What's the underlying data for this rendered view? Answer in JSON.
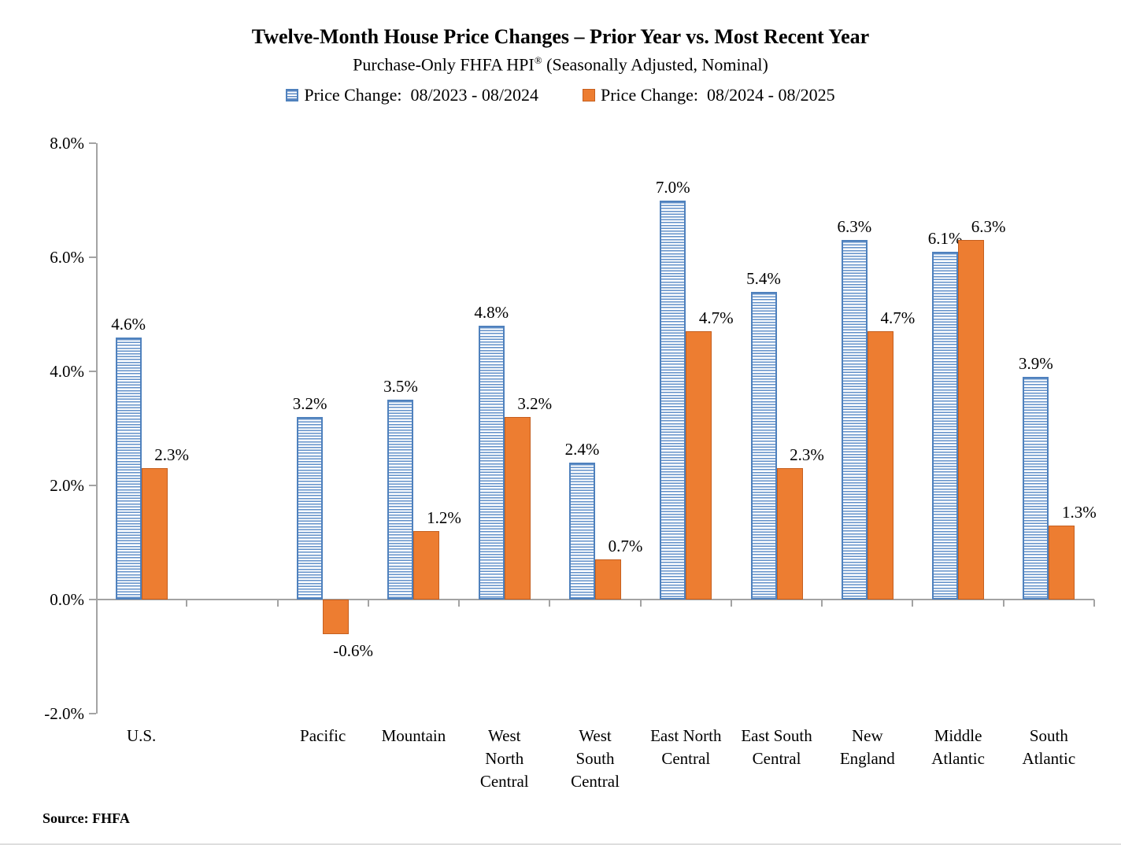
{
  "title": "Twelve-Month House Price Changes – Prior Year vs. Most Recent Year",
  "subtitle": {
    "pre": "Purchase-Only FHFA HPI",
    "sup": "®",
    "post": " (Seasonally Adjusted, Nominal)"
  },
  "legend": {
    "items": [
      {
        "label": "Price Change:  08/2023 - 08/2024",
        "swatch": "blue-striped-square-icon",
        "color": "#4F81BD"
      },
      {
        "label": "Price Change:  08/2024 - 08/2025",
        "swatch": "orange-square-icon",
        "color": "#ED7D31"
      }
    ]
  },
  "source": "Source: FHFA",
  "colors": {
    "prior_blue": "#4F81BD",
    "recent_orange": "#ED7D31",
    "recent_orange_border": "#C55F1F",
    "axis_gray": "#A3A3A3",
    "text_black": "#000000"
  },
  "chart_data": {
    "type": "bar",
    "title": "Twelve-Month House Price Changes – Prior Year vs. Most Recent Year",
    "subtitle": "Purchase-Only FHFA HPI® (Seasonally Adjusted, Nominal)",
    "categories": [
      "U.S.",
      "Pacific",
      "Mountain",
      "West North Central",
      "West South Central",
      "East North Central",
      "East South Central",
      "New England",
      "Middle Atlantic",
      "South Atlantic"
    ],
    "category_label_lines": [
      "U.S.",
      "Pacific",
      "Mountain",
      "West\nNorth\nCentral",
      "West\nSouth\nCentral",
      "East North\nCentral",
      "East South\nCentral",
      "New\nEngland",
      "Middle\nAtlantic",
      "South\nAtlantic"
    ],
    "series": [
      {
        "name": "Price Change:  08/2023 - 08/2024",
        "values": [
          4.6,
          3.2,
          3.5,
          4.8,
          2.4,
          7.0,
          5.4,
          6.3,
          6.1,
          3.9
        ],
        "value_labels": [
          "4.6%",
          "3.2%",
          "3.5%",
          "4.8%",
          "2.4%",
          "7.0%",
          "5.4%",
          "6.3%",
          "6.1%",
          "3.9%"
        ]
      },
      {
        "name": "Price Change:  08/2024 - 08/2025",
        "values": [
          2.3,
          -0.6,
          1.2,
          3.2,
          0.7,
          4.7,
          2.3,
          4.7,
          6.3,
          1.3
        ],
        "value_labels": [
          "2.3%",
          "-0.6%",
          "1.2%",
          "3.2%",
          "0.7%",
          "4.7%",
          "2.3%",
          "4.7%",
          "6.3%",
          "1.3%"
        ]
      }
    ],
    "xlabel": "",
    "ylabel": "",
    "ylim": [
      -2.0,
      8.0
    ],
    "y_tick_step": 2.0,
    "y_tick_labels": [
      "8.0%",
      "6.0%",
      "4.0%",
      "2.0%",
      "0.0%",
      "-2.0%"
    ],
    "grid": false,
    "legend_position": "top",
    "gap_slot_after_first_category": true
  }
}
